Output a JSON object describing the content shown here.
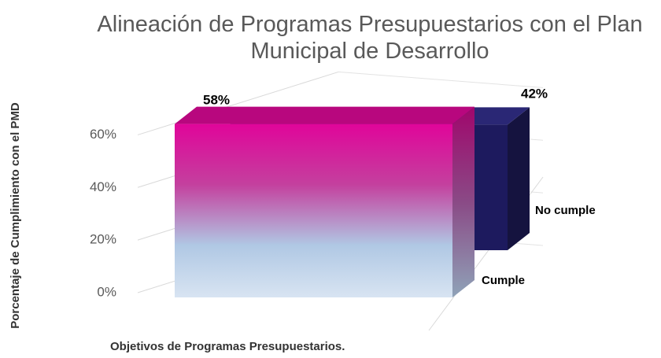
{
  "chart_data": {
    "type": "bar3d",
    "title": "Alineación de Programas Presupuestarios con el Plan Municipal de Desarrollo",
    "x_label": "Objetivos de Programas Presupuestarios.",
    "y_label": "Porcentaje de Cumplimiento con el PMD",
    "categories": [
      null
    ],
    "series": [
      {
        "name": "Cumple",
        "color": "#d6068f",
        "values": [
          58
        ],
        "value_labels": [
          "58%"
        ]
      },
      {
        "name": "No cumple",
        "color": "#1d1a5e",
        "values": [
          42
        ],
        "value_labels": [
          "42%"
        ]
      }
    ],
    "ylim": [
      0,
      70
    ],
    "yticks": [
      {
        "value": 0,
        "label": "0%"
      },
      {
        "value": 20,
        "label": "20%"
      },
      {
        "value": 40,
        "label": "40%"
      },
      {
        "value": 60,
        "label": "60%"
      }
    ],
    "grid": true
  }
}
